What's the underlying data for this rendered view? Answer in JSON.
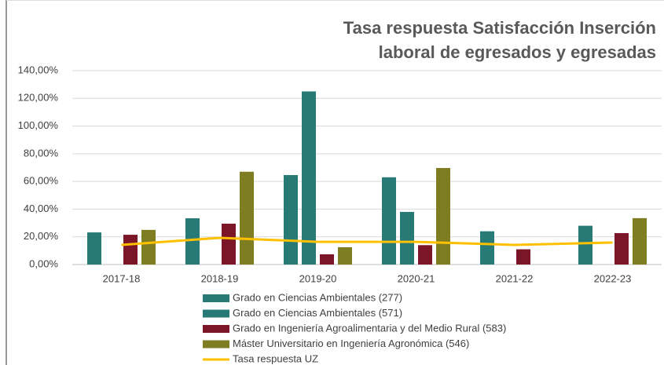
{
  "chart_data": {
    "type": "bar",
    "title": [
      "Tasa respuesta Satisfacción Inserción",
      "laboral de egresados y egresadas"
    ],
    "categories": [
      "2017-18",
      "2018-19",
      "2019-20",
      "2020-21",
      "2021-22",
      "2022-23"
    ],
    "series": [
      {
        "name": "Grado en Ciencias Ambientales (277)",
        "color": "#287a76",
        "type": "bar",
        "values": [
          23.2,
          33.4,
          64.6,
          63,
          24,
          28
        ]
      },
      {
        "name": "Grado en Ciencias Ambientales (571)",
        "color": "#287a76",
        "type": "bar",
        "values": [
          null,
          null,
          125,
          38,
          null,
          null
        ]
      },
      {
        "name": "Grado en Ingeniería Agroalimentaria y del Medio Rural (583)",
        "color": "#7a1628",
        "type": "bar",
        "values": [
          21.5,
          29.5,
          7.4,
          14,
          11,
          22.7
        ]
      },
      {
        "name": "Máster Universitario en Ingeniería Agronómica (546)",
        "color": "#7f7d22",
        "type": "bar",
        "values": [
          25,
          67,
          12.5,
          69.7,
          null,
          33.5
        ]
      },
      {
        "name": "Tasa respuesta UZ",
        "color": "#ffc000",
        "type": "line",
        "values": [
          14.2,
          19.3,
          16.4,
          16.4,
          14.2,
          15.9
        ]
      }
    ],
    "ylim": [
      0,
      140
    ],
    "yticks": [
      {
        "value": 0,
        "label": "0,00%"
      },
      {
        "value": 20,
        "label": "20,00%"
      },
      {
        "value": 40,
        "label": "40,00%"
      },
      {
        "value": 60,
        "label": "60,00%"
      },
      {
        "value": 80,
        "label": "80,00%"
      },
      {
        "value": 100,
        "label": "100,00%"
      },
      {
        "value": 120,
        "label": "120,00%"
      },
      {
        "value": 140,
        "label": "140,00%"
      }
    ],
    "grid": true,
    "legend": "bottom"
  }
}
